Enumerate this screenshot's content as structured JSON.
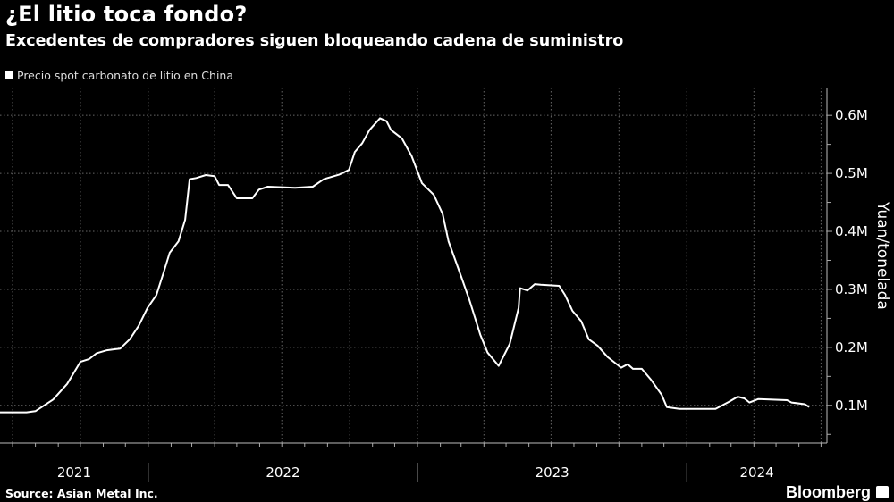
{
  "header": {
    "title": "¿El litio toca fondo?",
    "subtitle": "Excedentes de compradores siguen bloqueando cadena de suministro"
  },
  "footer": {
    "source": "Source: Asian Metal Inc.",
    "brand": "Bloomberg"
  },
  "colors": {
    "background": "#000000",
    "line": "#ffffff",
    "grid": "#555555"
  },
  "chart_data": {
    "type": "line",
    "title": "¿El litio toca fondo?",
    "subtitle": "Excedentes de compradores siguen bloqueando cadena de suministro",
    "ylabel": "Yuan/tonelada",
    "xlabel": "",
    "ylim": [
      35000,
      648000
    ],
    "xlim": [
      "2021-06-14",
      "2024-07-09"
    ],
    "y_axis_position": "right",
    "yticks": [
      100000,
      200000,
      300000,
      400000,
      500000,
      600000
    ],
    "ytick_labels": [
      "0.1M",
      "0.2M",
      "0.3M",
      "0.4M",
      "0.5M",
      "0.6M"
    ],
    "xtick_labels": [
      "2021",
      "2022",
      "2023",
      "2024"
    ],
    "grid": true,
    "legend_position": "top-left",
    "series": [
      {
        "name": "Precio spot carbonato de litio en China",
        "x": [
          "2021-06-14",
          "2021-07-20",
          "2021-08-01",
          "2021-08-25",
          "2021-09-13",
          "2021-10-01",
          "2021-10-13",
          "2021-10-23",
          "2021-11-06",
          "2021-11-24",
          "2021-12-07",
          "2021-12-19",
          "2021-12-31",
          "2022-01-12",
          "2022-01-22",
          "2022-01-30",
          "2022-02-11",
          "2022-02-20",
          "2022-02-26",
          "2022-03-07",
          "2022-03-20",
          "2022-04-01",
          "2022-04-07",
          "2022-04-19",
          "2022-05-01",
          "2022-05-22",
          "2022-05-31",
          "2022-06-12",
          "2022-07-19",
          "2022-08-12",
          "2022-08-27",
          "2022-09-17",
          "2022-09-30",
          "2022-10-08",
          "2022-10-18",
          "2022-10-28",
          "2022-11-11",
          "2022-11-20",
          "2022-11-26",
          "2022-12-11",
          "2022-12-24",
          "2023-01-07",
          "2023-01-23",
          "2023-02-04",
          "2023-02-12",
          "2023-02-25",
          "2023-03-12",
          "2023-03-27",
          "2023-04-06",
          "2023-04-21",
          "2023-05-06",
          "2023-05-18",
          "2023-05-20",
          "2023-05-30",
          "2023-06-09",
          "2023-06-17",
          "2023-07-12",
          "2023-07-20",
          "2023-07-30",
          "2023-08-11",
          "2023-08-21",
          "2023-09-02",
          "2023-09-16",
          "2023-10-04",
          "2023-10-13",
          "2023-10-20",
          "2023-11-01",
          "2023-11-13",
          "2023-11-28",
          "2023-12-05",
          "2023-12-22",
          "2024-02-09",
          "2024-02-27",
          "2024-03-10",
          "2024-03-19",
          "2024-03-26",
          "2024-04-07",
          "2024-05-16",
          "2024-05-22",
          "2024-06-09",
          "2024-06-15"
        ],
        "y": [
          88000,
          88000,
          90000,
          110000,
          137000,
          175000,
          180000,
          190000,
          195000,
          198000,
          214000,
          237000,
          268000,
          290000,
          330000,
          363000,
          383000,
          420000,
          490000,
          492000,
          497000,
          495000,
          480000,
          480000,
          457000,
          457000,
          472000,
          477000,
          475000,
          477000,
          490000,
          498000,
          506000,
          537000,
          552000,
          575000,
          595000,
          590000,
          575000,
          560000,
          530000,
          483000,
          463000,
          430000,
          383000,
          337000,
          283000,
          222000,
          191000,
          168000,
          206000,
          268000,
          302000,
          298000,
          309000,
          308000,
          306000,
          290000,
          263000,
          245000,
          214000,
          203000,
          183000,
          165000,
          171000,
          163000,
          163000,
          145000,
          118000,
          97000,
          94000,
          94000,
          106000,
          115000,
          112000,
          105000,
          111000,
          109000,
          105000,
          102000,
          97000
        ]
      }
    ]
  }
}
